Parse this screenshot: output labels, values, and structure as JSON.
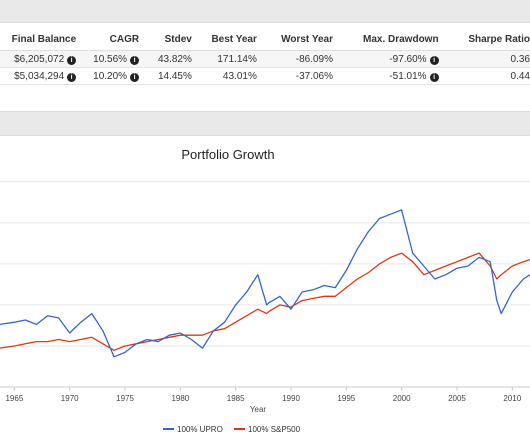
{
  "stats_table": {
    "headers": [
      "Final Balance",
      "CAGR",
      "Stdev",
      "Best Year",
      "Worst Year",
      "Max. Drawdown",
      "Sharpe Ratio"
    ],
    "rows": [
      [
        "$6,205,072",
        "10.56%",
        "43.82%",
        "171.14%",
        "-86.09%",
        "-97.60%",
        "0.36"
      ],
      [
        "$5,034,294",
        "10.20%",
        "14.45%",
        "43.01%",
        "-37.06%",
        "-51.01%",
        "0.44"
      ]
    ]
  },
  "chart_data": {
    "type": "line",
    "title": "Portfolio Growth",
    "xlabel": "Year",
    "x_ticks": [
      "1965",
      "1970",
      "1975",
      "1980",
      "1985",
      "1990",
      "1995",
      "2000",
      "2005",
      "2010"
    ],
    "xlim": [
      1963.7,
      2011.6
    ],
    "grid": true,
    "legend_position": "bottom",
    "colors": {
      "upro": "#3366cc",
      "sp500": "#dc3912"
    },
    "series": [
      {
        "name": "100% UPRO",
        "x": [
          1963.7,
          1965,
          1966,
          1967,
          1968,
          1969,
          1970,
          1971,
          1972,
          1973,
          1974,
          1975,
          1976,
          1977,
          1978,
          1979,
          1980,
          1981,
          1982,
          1983,
          1984,
          1985,
          1986,
          1987,
          1987.8,
          1988,
          1989,
          1990,
          1991,
          1992,
          1993,
          1994,
          1995,
          1996,
          1997,
          1998,
          1999,
          2000,
          2001,
          2002,
          2003,
          2004,
          2005,
          2006,
          2007,
          2008,
          2008.6,
          2009,
          2010,
          2011,
          2011.6
        ],
        "y": [
          0.29,
          0.3,
          0.31,
          0.29,
          0.33,
          0.32,
          0.25,
          0.3,
          0.34,
          0.26,
          0.14,
          0.16,
          0.2,
          0.22,
          0.21,
          0.24,
          0.25,
          0.22,
          0.18,
          0.26,
          0.3,
          0.38,
          0.44,
          0.52,
          0.38,
          0.39,
          0.42,
          0.36,
          0.44,
          0.45,
          0.47,
          0.46,
          0.54,
          0.64,
          0.72,
          0.78,
          0.8,
          0.82,
          0.62,
          0.56,
          0.5,
          0.52,
          0.55,
          0.56,
          0.6,
          0.58,
          0.4,
          0.34,
          0.44,
          0.5,
          0.52
        ]
      },
      {
        "name": "100% S&P500",
        "x": [
          1963.7,
          1965,
          1966,
          1967,
          1968,
          1969,
          1970,
          1971,
          1972,
          1973,
          1974,
          1975,
          1976,
          1977,
          1978,
          1979,
          1980,
          1981,
          1982,
          1983,
          1984,
          1985,
          1986,
          1987,
          1987.8,
          1988,
          1989,
          1990,
          1991,
          1992,
          1993,
          1994,
          1995,
          1996,
          1997,
          1998,
          1999,
          2000,
          2001,
          2002,
          2003,
          2004,
          2005,
          2006,
          2007,
          2008,
          2008.6,
          2009,
          2010,
          2011,
          2011.6
        ],
        "y": [
          0.18,
          0.19,
          0.2,
          0.21,
          0.21,
          0.22,
          0.21,
          0.22,
          0.23,
          0.2,
          0.17,
          0.19,
          0.2,
          0.21,
          0.22,
          0.23,
          0.24,
          0.24,
          0.24,
          0.26,
          0.27,
          0.3,
          0.33,
          0.36,
          0.34,
          0.35,
          0.38,
          0.37,
          0.4,
          0.41,
          0.42,
          0.42,
          0.46,
          0.5,
          0.53,
          0.57,
          0.6,
          0.62,
          0.58,
          0.52,
          0.54,
          0.56,
          0.58,
          0.6,
          0.62,
          0.56,
          0.5,
          0.52,
          0.56,
          0.58,
          0.59
        ]
      }
    ]
  }
}
